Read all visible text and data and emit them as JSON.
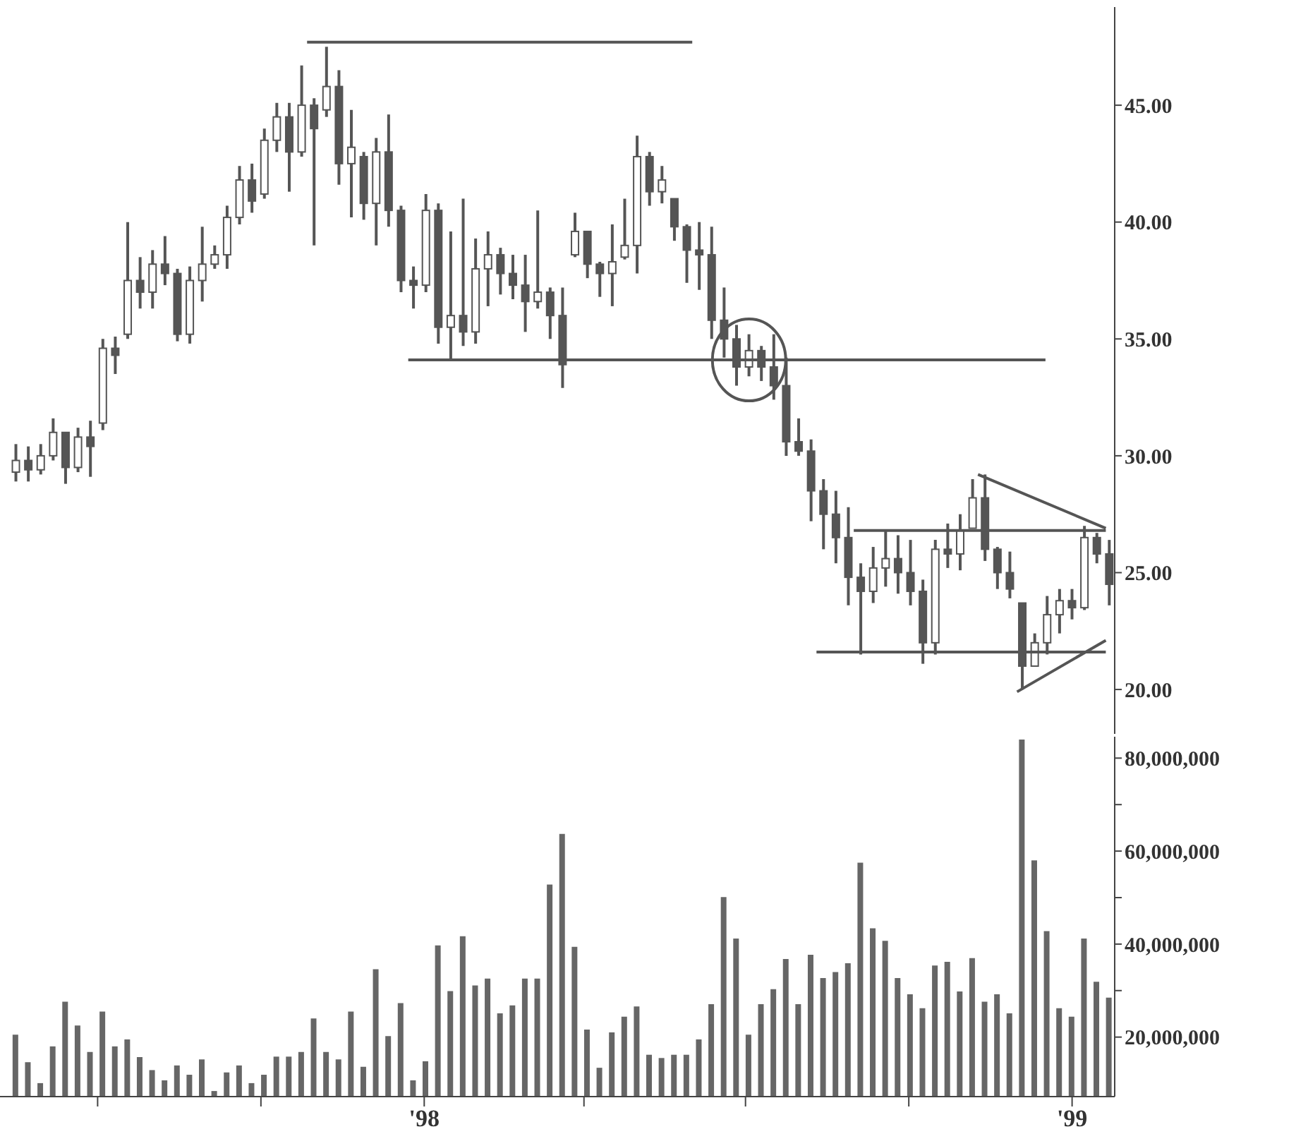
{
  "chart_data": [
    {
      "type": "candlestick",
      "color": "#555555",
      "marker": "none",
      "tick_labels": "y",
      "x": [
        "1997-05-16",
        "1997-05-23",
        "1997-05-30",
        "1997-06-06",
        "1997-06-13",
        "1997-06-20",
        "1997-06-27",
        "1997-07-04",
        "1997-07-11",
        "1997-07-18",
        "1997-07-25",
        "1997-08-01",
        "1997-08-08",
        "1997-08-15",
        "1997-08-22",
        "1997-08-29",
        "1997-09-05",
        "1997-09-12",
        "1997-09-19",
        "1997-09-26",
        "1997-10-03",
        "1997-10-10",
        "1997-10-17",
        "1997-10-24",
        "1997-10-31",
        "1997-11-07",
        "1997-11-14",
        "1997-11-21",
        "1997-11-28",
        "1997-12-05",
        "1997-12-12",
        "1997-12-19",
        "1997-12-26",
        "1998-01-02",
        "1998-01-09",
        "1998-01-16",
        "1998-01-23",
        "1998-01-30",
        "1998-02-06",
        "1998-02-13",
        "1998-02-20",
        "1998-02-27",
        "1998-03-06",
        "1998-03-13",
        "1998-03-20",
        "1998-03-27",
        "1998-04-03",
        "1998-04-10",
        "1998-04-17",
        "1998-04-24",
        "1998-05-01",
        "1998-05-08",
        "1998-05-15",
        "1998-05-22",
        "1998-05-29",
        "1998-06-05",
        "1998-06-12",
        "1998-06-19",
        "1998-06-26",
        "1998-07-03",
        "1998-07-10",
        "1998-07-17",
        "1998-07-24",
        "1998-07-31",
        "1998-08-07",
        "1998-08-14",
        "1998-08-21",
        "1998-08-28",
        "1998-09-04",
        "1998-09-11",
        "1998-09-18",
        "1998-09-25",
        "1998-10-02",
        "1998-10-09",
        "1998-10-16",
        "1998-10-23",
        "1998-10-30",
        "1998-11-06",
        "1998-11-13",
        "1998-11-20",
        "1998-11-27",
        "1998-12-04",
        "1998-12-11",
        "1998-12-18",
        "1998-12-25",
        "1999-01-01",
        "1999-01-08",
        "1999-01-15",
        "1999-01-22"
      ],
      "ohlc": [
        [
          29.3,
          30.5,
          28.9,
          29.8
        ],
        [
          29.8,
          30.4,
          28.9,
          29.4
        ],
        [
          29.4,
          30.5,
          29.2,
          30.0
        ],
        [
          30.0,
          31.6,
          29.8,
          31.0
        ],
        [
          31.0,
          31.0,
          28.8,
          29.5
        ],
        [
          29.5,
          31.2,
          29.3,
          30.8
        ],
        [
          30.8,
          31.5,
          29.1,
          30.4
        ],
        [
          31.4,
          35.0,
          31.1,
          34.6
        ],
        [
          34.6,
          35.1,
          33.5,
          34.3
        ],
        [
          35.2,
          40.0,
          35.0,
          37.5
        ],
        [
          37.5,
          38.5,
          36.3,
          37.0
        ],
        [
          37.0,
          38.8,
          36.3,
          38.2
        ],
        [
          38.2,
          39.4,
          37.3,
          37.8
        ],
        [
          37.8,
          38.0,
          34.9,
          35.2
        ],
        [
          35.2,
          38.1,
          34.8,
          37.5
        ],
        [
          37.5,
          39.8,
          36.6,
          38.2
        ],
        [
          38.2,
          39.0,
          38.0,
          38.6
        ],
        [
          38.6,
          40.7,
          38.0,
          40.2
        ],
        [
          40.2,
          42.4,
          39.9,
          41.8
        ],
        [
          41.8,
          42.5,
          40.4,
          40.9
        ],
        [
          41.2,
          44.0,
          41.0,
          43.5
        ],
        [
          43.5,
          45.1,
          43.0,
          44.5
        ],
        [
          44.5,
          45.1,
          41.3,
          43.0
        ],
        [
          43.0,
          46.7,
          42.8,
          45.0
        ],
        [
          45.0,
          45.3,
          39.0,
          44.0
        ],
        [
          44.8,
          47.5,
          44.5,
          45.8
        ],
        [
          45.8,
          46.5,
          41.6,
          42.5
        ],
        [
          42.5,
          44.8,
          40.2,
          43.2
        ],
        [
          42.8,
          43.0,
          40.1,
          40.8
        ],
        [
          40.8,
          43.6,
          39.0,
          43.0
        ],
        [
          43.0,
          44.6,
          39.8,
          40.5
        ],
        [
          40.5,
          40.7,
          37.0,
          37.5
        ],
        [
          37.5,
          38.1,
          36.3,
          37.3
        ],
        [
          37.3,
          41.2,
          37.0,
          40.5
        ],
        [
          40.5,
          40.8,
          34.8,
          35.5
        ],
        [
          35.5,
          39.6,
          34.1,
          36.0
        ],
        [
          36.0,
          41.0,
          34.7,
          35.3
        ],
        [
          35.3,
          39.3,
          34.8,
          38.0
        ],
        [
          38.0,
          39.6,
          36.4,
          38.6
        ],
        [
          38.6,
          38.9,
          36.9,
          37.8
        ],
        [
          37.8,
          38.6,
          36.7,
          37.3
        ],
        [
          37.3,
          38.6,
          35.3,
          36.6
        ],
        [
          36.6,
          40.5,
          36.3,
          37.0
        ],
        [
          37.0,
          37.2,
          35.0,
          36.0
        ],
        [
          36.0,
          37.2,
          32.9,
          33.9
        ],
        [
          38.6,
          40.4,
          38.5,
          39.6
        ],
        [
          39.6,
          39.6,
          37.6,
          38.2
        ],
        [
          38.2,
          38.3,
          36.8,
          37.8
        ],
        [
          37.8,
          39.9,
          36.4,
          38.3
        ],
        [
          38.5,
          41.0,
          38.4,
          39.0
        ],
        [
          39.0,
          43.7,
          37.8,
          42.8
        ],
        [
          42.8,
          43.0,
          40.7,
          41.3
        ],
        [
          41.3,
          42.4,
          40.8,
          41.8
        ],
        [
          41.0,
          41.0,
          39.2,
          39.8
        ],
        [
          39.8,
          39.9,
          37.4,
          38.8
        ],
        [
          38.8,
          40.0,
          37.1,
          38.6
        ],
        [
          38.6,
          39.8,
          35.0,
          35.8
        ],
        [
          35.8,
          37.2,
          34.2,
          35.0
        ],
        [
          35.0,
          35.6,
          33.0,
          33.8
        ],
        [
          33.8,
          35.2,
          33.4,
          34.5
        ],
        [
          34.5,
          34.7,
          33.2,
          33.8
        ],
        [
          33.8,
          35.2,
          32.4,
          33.0
        ],
        [
          33.0,
          34.2,
          30.0,
          30.6
        ],
        [
          30.6,
          31.6,
          30.0,
          30.2
        ],
        [
          30.2,
          30.7,
          27.2,
          28.5
        ],
        [
          28.5,
          29.0,
          26.0,
          27.5
        ],
        [
          27.5,
          28.5,
          25.4,
          26.5
        ],
        [
          26.5,
          27.8,
          23.6,
          24.8
        ],
        [
          24.8,
          25.4,
          21.5,
          24.2
        ],
        [
          24.2,
          26.1,
          23.7,
          25.2
        ],
        [
          25.2,
          26.8,
          24.4,
          25.6
        ],
        [
          25.6,
          26.6,
          24.1,
          25.0
        ],
        [
          25.0,
          26.4,
          23.6,
          24.2
        ],
        [
          24.2,
          24.7,
          21.1,
          22.0
        ],
        [
          22.0,
          26.4,
          21.5,
          26.0
        ],
        [
          26.0,
          27.1,
          25.2,
          25.8
        ],
        [
          25.8,
          27.5,
          25.1,
          26.8
        ],
        [
          26.9,
          29.0,
          26.9,
          28.2
        ],
        [
          28.2,
          29.2,
          25.5,
          26.0
        ],
        [
          26.0,
          26.1,
          24.3,
          25.0
        ],
        [
          25.0,
          25.9,
          23.9,
          24.3
        ],
        [
          23.7,
          23.7,
          20.0,
          21.0
        ],
        [
          21.0,
          22.4,
          21.0,
          22.0
        ],
        [
          22.0,
          24.0,
          21.5,
          23.2
        ],
        [
          23.2,
          24.3,
          22.4,
          23.8
        ],
        [
          23.8,
          24.3,
          23.0,
          23.5
        ],
        [
          23.5,
          27.0,
          23.4,
          26.5
        ],
        [
          26.5,
          26.7,
          25.4,
          25.8
        ],
        [
          25.8,
          26.4,
          23.6,
          24.5
        ]
      ],
      "series": [
        {
          "type": "line",
          "color": "#555555",
          "x": [
            "1997-10-27",
            "1998-06-01"
          ],
          "values": [
            47.7,
            47.7
          ]
        },
        {
          "type": "line",
          "color": "#555555",
          "x": [
            "1997-12-23",
            "1998-12-17"
          ],
          "values": [
            34.1,
            34.1
          ]
        },
        {
          "type": "line",
          "color": "#555555",
          "x": [
            "1998-08-31",
            "1999-01-20"
          ],
          "values": [
            26.8,
            26.8
          ]
        },
        {
          "type": "line",
          "color": "#555555",
          "x": [
            "1998-08-10",
            "1999-01-20"
          ],
          "values": [
            21.6,
            21.6
          ]
        },
        {
          "type": "line",
          "color": "#555555",
          "x": [
            "1998-11-09",
            "1999-01-20"
          ],
          "values": [
            29.2,
            26.9
          ]
        },
        {
          "type": "line",
          "color": "#555555",
          "x": [
            "1998-12-01",
            "1999-01-20"
          ],
          "values": [
            19.9,
            22.1
          ]
        }
      ],
      "xlim": [
        "1997-05-07",
        "1999-01-25"
      ],
      "ylim": [
        18.1,
        49.2
      ],
      "yticks": [
        {
          "value": 20,
          "label": "20.00"
        },
        {
          "value": 25,
          "label": "25.00"
        },
        {
          "value": 30,
          "label": "30.00"
        },
        {
          "value": 35,
          "label": "35.00"
        },
        {
          "value": 40,
          "label": "40.00"
        },
        {
          "value": 45,
          "label": "45.00"
        }
      ]
    },
    {
      "type": "bar",
      "color": "#666666",
      "x": [
        "1997-05-16",
        "1997-05-23",
        "1997-05-30",
        "1997-06-06",
        "1997-06-13",
        "1997-06-20",
        "1997-06-27",
        "1997-07-04",
        "1997-07-11",
        "1997-07-18",
        "1997-07-25",
        "1997-08-01",
        "1997-08-08",
        "1997-08-15",
        "1997-08-22",
        "1997-08-29",
        "1997-09-05",
        "1997-09-12",
        "1997-09-19",
        "1997-09-26",
        "1997-10-03",
        "1997-10-10",
        "1997-10-17",
        "1997-10-24",
        "1997-10-31",
        "1997-11-07",
        "1997-11-14",
        "1997-11-21",
        "1997-11-28",
        "1997-12-05",
        "1997-12-12",
        "1997-12-19",
        "1997-12-26",
        "1998-01-02",
        "1998-01-09",
        "1998-01-16",
        "1998-01-23",
        "1998-01-30",
        "1998-02-06",
        "1998-02-13",
        "1998-02-20",
        "1998-02-27",
        "1998-03-06",
        "1998-03-13",
        "1998-03-20",
        "1998-03-27",
        "1998-04-03",
        "1998-04-10",
        "1998-04-17",
        "1998-04-24",
        "1998-05-01",
        "1998-05-08",
        "1998-05-15",
        "1998-05-22",
        "1998-05-29",
        "1998-06-05",
        "1998-06-12",
        "1998-06-19",
        "1998-06-26",
        "1998-07-03",
        "1998-07-10",
        "1998-07-17",
        "1998-07-24",
        "1998-07-31",
        "1998-08-07",
        "1998-08-14",
        "1998-08-21",
        "1998-08-28",
        "1998-09-04",
        "1998-09-11",
        "1998-09-18",
        "1998-09-25",
        "1998-10-02",
        "1998-10-09",
        "1998-10-16",
        "1998-10-23",
        "1998-10-30",
        "1998-11-06",
        "1998-11-13",
        "1998-11-20",
        "1998-11-27",
        "1998-12-04",
        "1998-12-11",
        "1998-12-18",
        "1998-12-25",
        "1999-01-01",
        "1999-01-08",
        "1999-01-15",
        "1999-01-22"
      ],
      "values": [
        20500000,
        14600000,
        10100000,
        18000000,
        27600000,
        22500000,
        16800000,
        25500000,
        18000000,
        19500000,
        15700000,
        12900000,
        10700000,
        13900000,
        11900000,
        15200000,
        8400000,
        12400000,
        13900000,
        10100000,
        11900000,
        15800000,
        15800000,
        16800000,
        24000000,
        16800000,
        15200000,
        25500000,
        13600000,
        34600000,
        20200000,
        27300000,
        10700000,
        14800000,
        39700000,
        29900000,
        41700000,
        31100000,
        32600000,
        25100000,
        26800000,
        32600000,
        32600000,
        52800000,
        63700000,
        39400000,
        21600000,
        13400000,
        21000000,
        24400000,
        26600000,
        16200000,
        15500000,
        16200000,
        16200000,
        19500000,
        27100000,
        50100000,
        41200000,
        20500000,
        27100000,
        30300000,
        36800000,
        27100000,
        37700000,
        32700000,
        34000000,
        35900000,
        57500000,
        43400000,
        40700000,
        32700000,
        29200000,
        26200000,
        35400000,
        36200000,
        29800000,
        37000000,
        27600000,
        29200000,
        25100000,
        84000000,
        58000000,
        42800000,
        26200000,
        24400000,
        41200000,
        31900000,
        28500000
      ],
      "xlim": [
        "1997-05-07",
        "1999-01-25"
      ],
      "xticks": [
        {
          "value": "1997-07-01",
          "label": null
        },
        {
          "value": "1997-10-01",
          "label": null
        },
        {
          "value": "1998-01-01",
          "label": "'98"
        },
        {
          "value": "1998-04-01",
          "label": null
        },
        {
          "value": "1998-07-01",
          "label": null
        },
        {
          "value": "1998-10-01",
          "label": null
        },
        {
          "value": "1999-01-01",
          "label": "'99"
        }
      ],
      "ylim": [
        7200000,
        84600000
      ],
      "yticks": [
        {
          "value": 20000000,
          "label": "20,000,000"
        },
        {
          "value": 30000000,
          "label": null
        },
        {
          "value": 40000000,
          "label": "40,000,000"
        },
        {
          "value": 50000000,
          "label": null
        },
        {
          "value": 60000000,
          "label": "60,000,000"
        },
        {
          "value": 70000000,
          "label": null
        },
        {
          "value": 80000000,
          "label": "80,000,000"
        }
      ]
    }
  ]
}
